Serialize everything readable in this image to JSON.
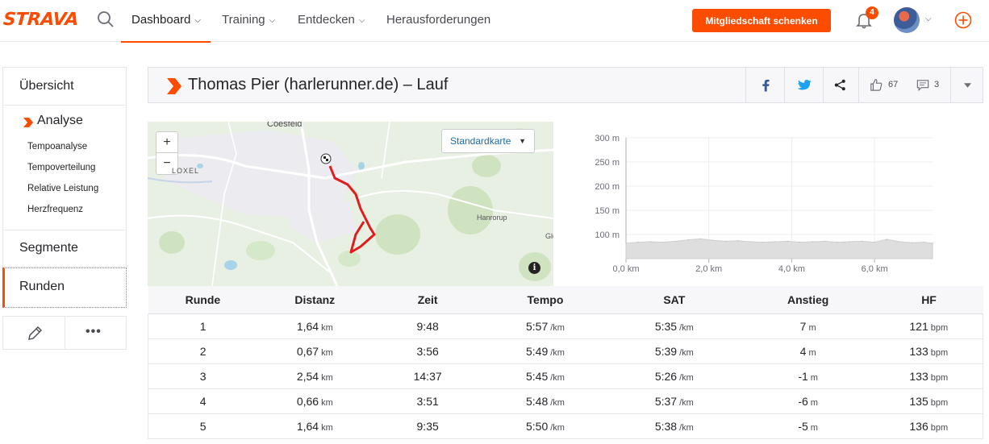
{
  "brand": {
    "logo": "STRAVA",
    "accent": "#fc4c02"
  },
  "nav": {
    "items": [
      {
        "label": "Dashboard",
        "has_menu": true,
        "active": true
      },
      {
        "label": "Training",
        "has_menu": true
      },
      {
        "label": "Entdecken",
        "has_menu": true
      },
      {
        "label": "Herausforderungen",
        "has_menu": false
      }
    ],
    "gift_button": "Mitgliedschaft schenken",
    "notification_count": "4"
  },
  "sidebar": {
    "overview": "Übersicht",
    "analysis": "Analyse",
    "analysis_items": [
      "Tempoanalyse",
      "Tempoverteilung",
      "Relative Leistung",
      "Herzfrequenz"
    ],
    "segments": "Segmente",
    "laps": "Runden",
    "more": "•••"
  },
  "activity": {
    "title": "Thomas Pier (harlerunner.de) – Lauf",
    "kudos_count": "67",
    "comment_count": "3"
  },
  "map": {
    "zoom_in": "+",
    "zoom_out": "−",
    "map_type": "Standardkarte",
    "labels": {
      "town_north": "Coesfeld",
      "town_west": "LOXEL",
      "village_east": "Hanrorup",
      "edge_label": "Gle"
    },
    "info": "i"
  },
  "chart_data": {
    "type": "area",
    "title": "",
    "xlabel": "",
    "ylabel": "",
    "x_unit": "km",
    "y_unit": "m",
    "xlim": [
      0,
      7.4
    ],
    "ylim": [
      50,
      300
    ],
    "x_ticks": [
      "0,0 km",
      "2,0 km",
      "4,0 km",
      "6,0 km"
    ],
    "y_ticks": [
      "300 m",
      "250 m",
      "200 m",
      "150 m",
      "100 m"
    ],
    "x": [
      0,
      0.3,
      0.6,
      0.9,
      1.2,
      1.5,
      1.8,
      2.1,
      2.4,
      2.7,
      3.0,
      3.3,
      3.6,
      3.9,
      4.2,
      4.5,
      4.8,
      5.1,
      5.4,
      5.7,
      6.0,
      6.3,
      6.6,
      6.9,
      7.2,
      7.4
    ],
    "y": [
      82,
      84,
      85,
      84,
      86,
      89,
      91,
      88,
      86,
      87,
      85,
      84,
      85,
      86,
      84,
      85,
      86,
      84,
      85,
      86,
      84,
      90,
      85,
      83,
      84,
      82
    ],
    "grid": true,
    "color": "#dedede"
  },
  "laps_table": {
    "columns": [
      "Runde",
      "Distanz",
      "Zeit",
      "Tempo",
      "SAT",
      "Anstieg",
      "HF"
    ],
    "rows": [
      {
        "lap": "1",
        "distance": "1,64",
        "distance_unit": "km",
        "time": "9:48",
        "pace": "5:57",
        "pace_unit": "/km",
        "gap": "5:35",
        "gap_unit": "/km",
        "elev": "7",
        "elev_unit": "m",
        "hr": "121",
        "hr_unit": "bpm"
      },
      {
        "lap": "2",
        "distance": "0,67",
        "distance_unit": "km",
        "time": "3:56",
        "pace": "5:49",
        "pace_unit": "/km",
        "gap": "5:39",
        "gap_unit": "/km",
        "elev": "4",
        "elev_unit": "m",
        "hr": "133",
        "hr_unit": "bpm"
      },
      {
        "lap": "3",
        "distance": "2,54",
        "distance_unit": "km",
        "time": "14:37",
        "pace": "5:45",
        "pace_unit": "/km",
        "gap": "5:26",
        "gap_unit": "/km",
        "elev": "-1",
        "elev_unit": "m",
        "hr": "133",
        "hr_unit": "bpm"
      },
      {
        "lap": "4",
        "distance": "0,66",
        "distance_unit": "km",
        "time": "3:51",
        "pace": "5:48",
        "pace_unit": "/km",
        "gap": "5:37",
        "gap_unit": "/km",
        "elev": "-6",
        "elev_unit": "m",
        "hr": "135",
        "hr_unit": "bpm"
      },
      {
        "lap": "5",
        "distance": "1,64",
        "distance_unit": "km",
        "time": "9:35",
        "pace": "5:50",
        "pace_unit": "/km",
        "gap": "5:38",
        "gap_unit": "/km",
        "elev": "-5",
        "elev_unit": "m",
        "hr": "136",
        "hr_unit": "bpm"
      }
    ]
  }
}
